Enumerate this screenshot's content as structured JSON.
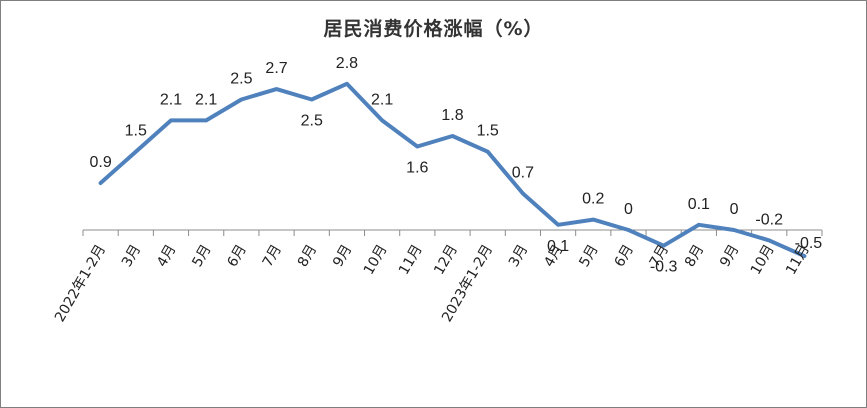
{
  "chart_data": {
    "type": "line",
    "title": "居民消费价格涨幅（%）",
    "categories": [
      "2022年1-2月",
      "3月",
      "4月",
      "5月",
      "6月",
      "7月",
      "8月",
      "9月",
      "10月",
      "11月",
      "12月",
      "2023年1-2月",
      "3月",
      "4月",
      "5月",
      "6月",
      "7月",
      "8月",
      "9月",
      "10月",
      "11月"
    ],
    "values": [
      0.9,
      1.5,
      2.1,
      2.1,
      2.5,
      2.7,
      2.5,
      2.8,
      2.1,
      1.6,
      1.8,
      1.5,
      0.7,
      0.1,
      0.2,
      0,
      -0.3,
      0.1,
      0,
      -0.2,
      -0.5
    ],
    "data_labels": [
      "0.9",
      "1.5",
      "2.1",
      "2.1",
      "2.5",
      "2.7",
      "2.5",
      "2.8",
      "2.1",
      "1.6",
      "1.8",
      "1.5",
      "0.7",
      "0.1",
      "0.2",
      "0",
      "-0.3",
      "0.1",
      "0",
      "-0.2",
      "-0.5"
    ],
    "xlabel": "",
    "ylabel": "",
    "ylim": [
      -0.6,
      3.0
    ],
    "grid": false,
    "legend": "none",
    "line_color": "#4f81bd"
  }
}
